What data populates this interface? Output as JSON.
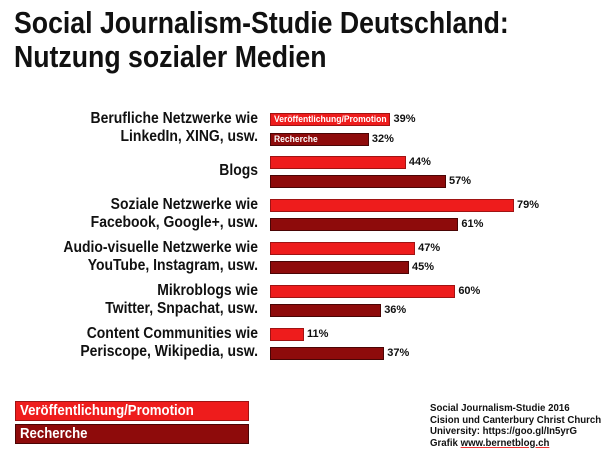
{
  "chart_data": {
    "type": "bar",
    "orientation": "horizontal",
    "title": "Social Journalism-Studie Deutschland: Nutzung sozialer Medien",
    "title_lines": [
      "Social Journalism-Studie Deutschland:",
      "Nutzung sozialer Medien"
    ],
    "categories": [
      [
        "Berufliche Netzwerke wie",
        "LinkedIn, XING, usw."
      ],
      [
        "Blogs"
      ],
      [
        "Soziale Netzwerke wie",
        "Facebook, Google+, usw."
      ],
      [
        "Audio-visuelle Netzwerke wie",
        "YouTube, Instagram, usw."
      ],
      [
        "Mikroblogs wie",
        "Twitter, Snpachat, usw."
      ],
      [
        "Content Communities wie",
        "Periscope, Wikipedia, usw."
      ]
    ],
    "series": [
      {
        "name": "Veröffentlichung/Promotion",
        "color": "#ee1c1c",
        "values": [
          39,
          44,
          79,
          47,
          60,
          11
        ]
      },
      {
        "name": "Recherche",
        "color": "#8e0b0b",
        "values": [
          32,
          57,
          61,
          45,
          36,
          37
        ]
      }
    ],
    "value_suffix": "%",
    "xlim": [
      0,
      100
    ],
    "grid": false,
    "legend": "bottom-left",
    "source_lines": [
      "Social Journalism-Studie 2016",
      "Cision und Canterbury Christ Church",
      "University: https://goo.gl/In5yrG"
    ],
    "credit": {
      "prefix": "Grafik",
      "link": "www.bernetblog.ch"
    }
  }
}
